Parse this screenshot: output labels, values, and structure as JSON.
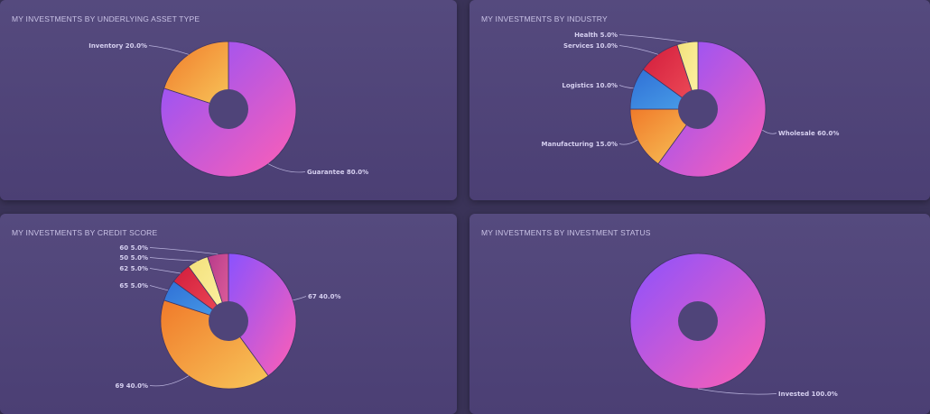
{
  "chart_data": [
    {
      "type": "pie",
      "title": "MY INVESTMENTS BY UNDERLYING ASSET TYPE",
      "slices": [
        {
          "label": "Guarantee",
          "value": 80.0,
          "text": "Guarantee 80.0%",
          "fill": "gradPink"
        },
        {
          "label": "Inventory",
          "value": 20.0,
          "text": "Inventory 20.0%",
          "fill": "gradOrange"
        }
      ]
    },
    {
      "type": "pie",
      "title": "MY INVESTMENTS BY INDUSTRY",
      "slices": [
        {
          "label": "Wholesale",
          "value": 60.0,
          "text": "Wholesale 60.0%",
          "fill": "gradPink"
        },
        {
          "label": "Manufacturing",
          "value": 15.0,
          "text": "Manufacturing 15.0%",
          "fill": "gradOrange"
        },
        {
          "label": "Logistics",
          "value": 10.0,
          "text": "Logistics 10.0%",
          "fill": "gradBlue"
        },
        {
          "label": "Services",
          "value": 10.0,
          "text": "Services 10.0%",
          "fill": "gradRed"
        },
        {
          "label": "Health",
          "value": 5.0,
          "text": "Health 5.0%",
          "fill": "gradYellow"
        }
      ]
    },
    {
      "type": "pie",
      "title": "MY INVESTMENTS BY CREDIT SCORE",
      "slices": [
        {
          "label": "67",
          "value": 40.0,
          "text": "67 40.0%",
          "fill": "gradPink"
        },
        {
          "label": "69",
          "value": 40.0,
          "text": "69 40.0%",
          "fill": "gradOrange"
        },
        {
          "label": "65",
          "value": 5.0,
          "text": "65 5.0%",
          "fill": "gradBlue"
        },
        {
          "label": "62",
          "value": 5.0,
          "text": "62 5.0%",
          "fill": "gradRed"
        },
        {
          "label": "50",
          "value": 5.0,
          "text": "50 5.0%",
          "fill": "gradYellow"
        },
        {
          "label": "60",
          "value": 5.0,
          "text": "60 5.0%",
          "fill": "gradMagenta"
        }
      ]
    },
    {
      "type": "pie",
      "title": "MY INVESTMENTS BY INVESTMENT STATUS",
      "slices": [
        {
          "label": "Invested",
          "value": 100.0,
          "text": "Invested 100.0%",
          "fill": "gradPink"
        }
      ]
    }
  ]
}
